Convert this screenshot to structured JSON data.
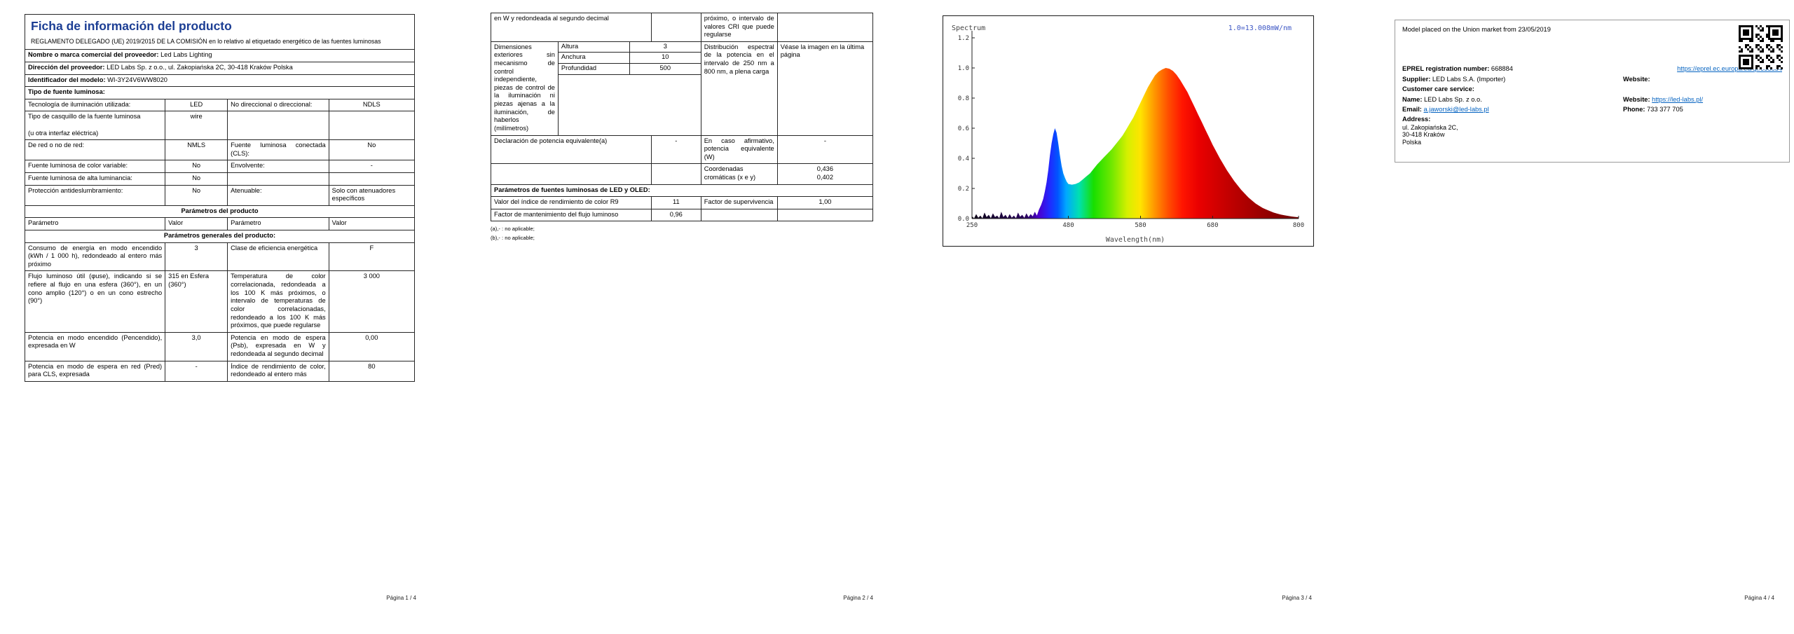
{
  "colors": {
    "title_blue": "#1c3e94",
    "link_blue": "#0563c1",
    "chart_note_blue": "#3b55c4"
  },
  "doc": {
    "title": "Ficha de información del producto",
    "subtitle": "REGLAMENTO DELEGADO (UE) 2019/2015 DE LA COMISIÓN en lo relativo al etiquetado energético de las fuentes luminosas"
  },
  "page1": {
    "supplier_name_label": "Nombre o marca comercial del proveedor:",
    "supplier_name": "Led Labs Lighting",
    "supplier_address_label": "Dirección del proveedor:",
    "supplier_address": "LED Labs Sp. z o.o., ul. Zakopiańska 2C, 30-418 Kraków Polska",
    "model_label": "Identificador del modelo:",
    "model": "WI-3Y24V6WW8020",
    "source_type_header": "Tipo de fuente luminosa:",
    "rows4": [
      {
        "p1": "Tecnología de iluminación utilizada:",
        "v1": "LED",
        "p2": "No direccional o direccional:",
        "v2": "NDLS"
      },
      {
        "p1": "Tipo de casquillo de la fuente luminosa\n\n(u otra interfaz eléctrica)",
        "v1": "wire",
        "p2": "",
        "v2": ""
      },
      {
        "p1": "De red o no de red:",
        "v1": "NMLS",
        "p2": "Fuente luminosa conectada (CLS):",
        "v2": "No"
      },
      {
        "p1": "Fuente luminosa de color variable:",
        "v1": "No",
        "p2": "Envolvente:",
        "v2": "-"
      },
      {
        "p1": "Fuente luminosa de alta luminancia:",
        "v1": "No",
        "p2": "",
        "v2": ""
      },
      {
        "p1": "Protección antideslumbramiento:",
        "v1": "No",
        "p2": "Atenuable:",
        "v2": "Solo con atenuadores específicos"
      }
    ],
    "product_params_header": "Parámetros del producto",
    "col_headers": [
      "Parámetro",
      "Valor",
      "Parámetro",
      "Valor"
    ],
    "general_params_header": "Parámetros generales del producto:",
    "general_rows": [
      {
        "p1": "Consumo de energía en modo encendido (kWh / 1 000 h), redondeado al entero más próximo",
        "v1": "3",
        "p2": "Clase de eficiencia energética",
        "v2": "F"
      },
      {
        "p1": "Flujo luminoso útil (φuse), indicando si se refiere al flujo en una esfera (360°), en un cono amplio (120°) o en un cono estrecho (90°)",
        "v1": "315 en Esfera (360°)",
        "p2": "Temperatura de color correlacionada, redondeada a los 100 K más próximos, o intervalo de temperaturas de color correlacionadas, redondeado a los 100 K más próximos, que puede regularse",
        "v2": "3 000"
      },
      {
        "p1": "Potencia en modo encendido (Pencendido), expresada en W",
        "v1": "3,0",
        "p2": "Potencia en modo de espera (Psb), expresada en W y redondeada al segundo decimal",
        "v2": "0,00"
      },
      {
        "p1": "Potencia en modo de espera en red (Pred) para CLS, expresada",
        "v1": "-",
        "p2": "Índice de rendimiento de color, redondeado al entero más",
        "v2": "80"
      }
    ],
    "footer": "Página 1 / 4"
  },
  "page2": {
    "cont_row": {
      "p1": "en W y redondeada al segundo decimal",
      "v1": "",
      "p2": "próximo, o intervalo de valores CRI que puede regularse",
      "v2": ""
    },
    "dimensions": {
      "label": "Dimensiones exteriores sin mecanismo de control independiente, piezas de control de la iluminación ni piezas ajenas a la iluminación, de haberlos (milímetros)",
      "rows": [
        [
          "Altura",
          "3"
        ],
        [
          "Anchura",
          "10"
        ],
        [
          "Profundidad",
          "500"
        ]
      ],
      "p2": "Distribución espectral de la potencia en el intervalo de 250 nm a 800 nm, a plena carga",
      "v2": "Véase la imagen en la última página"
    },
    "equiv_row": {
      "p1": "Declaración de potencia equivalente(a)",
      "v1": "-",
      "p2": "En caso afirmativo, potencia equivalente (W)",
      "v2": "-"
    },
    "chroma_row": {
      "p2": "Coordenadas cromáticas (x e y)",
      "v2a": "0,436",
      "v2b": "0,402"
    },
    "led_header": "Parámetros de fuentes luminosas de LED y OLED:",
    "led_rows": [
      {
        "p1": "Valor del índice de rendimiento de color R9",
        "v1": "11",
        "p2": "Factor de supervivencia",
        "v2": "1,00"
      },
      {
        "p1": "Factor de mantenimiento del flujo luminoso",
        "v1": "0,96",
        "p2": "",
        "v2": ""
      }
    ],
    "footnotes": [
      "(a),- : no aplicable;",
      "(b),- : no aplicable;"
    ],
    "footer": "Página 2 / 4"
  },
  "page3": {
    "footer": "Página 3 / 4"
  },
  "chart_data": {
    "type": "area",
    "title": "Spectrum",
    "scale_note": "1.0=13.008mW/nm",
    "xlabel": "Wavelength(nm)",
    "xlim": [
      250,
      800
    ],
    "ylim": [
      0,
      1.2
    ],
    "xticks": [
      250,
      480,
      580,
      680,
      800
    ],
    "yticks": [
      0.0,
      0.2,
      0.4,
      0.6,
      0.8,
      1.0,
      1.2
    ],
    "x_axis_map": [
      [
        250,
        0
      ],
      [
        480,
        0.295
      ],
      [
        580,
        0.516
      ],
      [
        680,
        0.737
      ],
      [
        800,
        1
      ]
    ],
    "gradient": [
      [
        250,
        "#0b0015"
      ],
      [
        380,
        "#2a0060"
      ],
      [
        410,
        "#4a00d0"
      ],
      [
        435,
        "#2228ff"
      ],
      [
        455,
        "#0055ff"
      ],
      [
        475,
        "#00a8ff"
      ],
      [
        495,
        "#00e0b0"
      ],
      [
        515,
        "#18df00"
      ],
      [
        540,
        "#70e800"
      ],
      [
        562,
        "#d6f000"
      ],
      [
        580,
        "#ffe400"
      ],
      [
        600,
        "#ff9400"
      ],
      [
        618,
        "#ff5000"
      ],
      [
        638,
        "#ff1500"
      ],
      [
        660,
        "#ea0000"
      ],
      [
        700,
        "#c40000"
      ],
      [
        750,
        "#980000"
      ],
      [
        800,
        "#6d0000"
      ]
    ],
    "x": [
      250,
      255,
      260,
      265,
      270,
      275,
      280,
      285,
      290,
      295,
      300,
      305,
      310,
      315,
      320,
      325,
      330,
      335,
      340,
      345,
      350,
      355,
      360,
      365,
      370,
      375,
      380,
      385,
      390,
      395,
      400,
      405,
      410,
      415,
      420,
      424,
      428,
      432,
      436,
      440,
      444,
      448,
      452,
      456,
      460,
      464,
      468,
      472,
      476,
      480,
      485,
      490,
      495,
      500,
      505,
      510,
      515,
      520,
      525,
      530,
      535,
      540,
      545,
      550,
      555,
      560,
      565,
      570,
      575,
      580,
      585,
      590,
      595,
      600,
      605,
      610,
      615,
      620,
      625,
      630,
      635,
      640,
      645,
      650,
      655,
      660,
      665,
      670,
      675,
      680,
      685,
      690,
      695,
      700,
      705,
      710,
      715,
      720,
      725,
      730,
      735,
      740,
      745,
      750,
      755,
      760,
      765,
      770,
      775,
      780,
      785,
      790,
      795,
      800
    ],
    "y": [
      0.015,
      0.002,
      0.03,
      0.005,
      0.02,
      0.002,
      0.04,
      0.01,
      0.025,
      0.003,
      0.035,
      0.01,
      0.02,
      0.003,
      0.045,
      0.01,
      0.025,
      0.004,
      0.03,
      0.006,
      0.02,
      0.003,
      0.04,
      0.012,
      0.025,
      0.005,
      0.035,
      0.01,
      0.03,
      0.015,
      0.045,
      0.02,
      0.06,
      0.09,
      0.13,
      0.18,
      0.24,
      0.32,
      0.42,
      0.5,
      0.56,
      0.6,
      0.57,
      0.5,
      0.42,
      0.35,
      0.3,
      0.27,
      0.245,
      0.23,
      0.225,
      0.23,
      0.24,
      0.26,
      0.28,
      0.3,
      0.33,
      0.36,
      0.385,
      0.41,
      0.435,
      0.46,
      0.49,
      0.52,
      0.55,
      0.59,
      0.63,
      0.67,
      0.72,
      0.77,
      0.82,
      0.87,
      0.91,
      0.95,
      0.975,
      0.99,
      1.0,
      0.995,
      0.98,
      0.955,
      0.92,
      0.88,
      0.84,
      0.79,
      0.74,
      0.69,
      0.64,
      0.59,
      0.54,
      0.49,
      0.445,
      0.4,
      0.36,
      0.32,
      0.285,
      0.25,
      0.22,
      0.19,
      0.165,
      0.14,
      0.12,
      0.1,
      0.085,
      0.07,
      0.06,
      0.05,
      0.04,
      0.033,
      0.027,
      0.022,
      0.018,
      0.014,
      0.011,
      0.009
    ]
  },
  "page4": {
    "market_line": "Model placed on the Union market from 23/05/2019",
    "eprel_label": "EPREL registration number:",
    "eprel_value": "668884",
    "eprel_link": "https://eprel.ec.europa.eu/qr/668884",
    "supplier_label": "Supplier:",
    "supplier_value": "LED Labs S.A. (Importer)",
    "website1_label": "Website:",
    "customer_care": "Customer care service:",
    "name_label": "Name:",
    "name_value": "LED Labs Sp. z o.o.",
    "website2_label": "Website:",
    "website2_value": "https://led-labs.pl/",
    "email_label": "Email:",
    "email_value": "a.jaworski@led-labs.pl",
    "phone_label": "Phone:",
    "phone_value": "733 377 705",
    "address_label": "Address:",
    "address_lines": [
      "ul. Zakopiańska 2C,",
      "30-418 Kraków",
      "Polska"
    ],
    "footer": "Página 4 / 4"
  }
}
